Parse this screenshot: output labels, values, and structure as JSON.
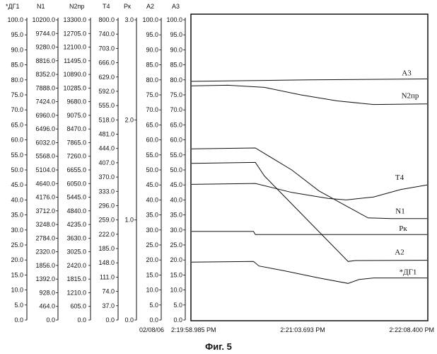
{
  "caption": "Фиг. 5",
  "chart_data": {
    "type": "line",
    "date": "02/08/06",
    "x_ticks": [
      "2:19:58.985 PM",
      "2:21:03.693 PM",
      "2:22:08.400 PM"
    ],
    "x_range_seconds": [
      0,
      129.415
    ],
    "axes": [
      {
        "name": "*ДГ1",
        "ticks": [
          "100.0",
          "95.0",
          "90.0",
          "85.0",
          "80.0",
          "75.0",
          "70.0",
          "65.0",
          "60.0",
          "55.0",
          "50.0",
          "45.0",
          "40.0",
          "35.0",
          "30.0",
          "25.0",
          "20.0",
          "15.0",
          "10.0",
          "5.0",
          "0.0"
        ]
      },
      {
        "name": "N1",
        "ticks": [
          "10200.0",
          "9744.0",
          "9280.0",
          "8816.0",
          "8352.0",
          "7888.0",
          "7424.0",
          "6960.0",
          "6496.0",
          "6032.0",
          "5568.0",
          "5104.0",
          "4640.0",
          "4176.0",
          "3712.0",
          "3248.0",
          "2784.0",
          "2320.0",
          "1856.0",
          "1392.0",
          "928.0",
          "464.0",
          "0.0"
        ]
      },
      {
        "name": "N2пр",
        "ticks": [
          "13300.0",
          "12705.0",
          "12100.0",
          "11495.0",
          "10890.0",
          "10285.0",
          "9680.0",
          "9075.0",
          "8470.0",
          "7865.0",
          "7260.0",
          "6655.0",
          "6050.0",
          "5445.0",
          "4840.0",
          "4235.0",
          "3630.0",
          "3025.0",
          "2420.0",
          "1815.0",
          "1210.0",
          "605.0",
          "0.0"
        ]
      },
      {
        "name": "T4",
        "ticks": [
          "800.0",
          "740.0",
          "703.0",
          "666.0",
          "629.0",
          "592.0",
          "555.0",
          "518.0",
          "481.0",
          "444.0",
          "407.0",
          "370.0",
          "333.0",
          "296.0",
          "259.0",
          "222.0",
          "185.0",
          "148.0",
          "111.0",
          "74.0",
          "37.0",
          "0.0"
        ]
      },
      {
        "name": "Pк",
        "ticks": [
          "3.0",
          "2.0",
          "1.0",
          "0.0"
        ]
      },
      {
        "name": "A2",
        "ticks": [
          "100.0",
          "95.0",
          "90.0",
          "85.0",
          "80.0",
          "75.0",
          "70.0",
          "65.0",
          "60.0",
          "55.0",
          "50.0",
          "45.0",
          "40.0",
          "35.0",
          "30.0",
          "25.0",
          "20.0",
          "15.0",
          "10.0",
          "5.0",
          "0.0"
        ]
      },
      {
        "name": "A3",
        "ticks": [
          "100.0",
          "95.0",
          "90.0",
          "85.0",
          "80.0",
          "75.0",
          "70.0",
          "65.0",
          "60.0",
          "55.0",
          "50.0",
          "45.0",
          "40.0",
          "35.0",
          "30.0",
          "25.0",
          "20.0",
          "15.0",
          "10.0",
          "5.0",
          "0.0"
        ]
      }
    ],
    "y_range_percent": [
      0,
      100
    ],
    "series": [
      {
        "name": "A3",
        "x": [
          0,
          64.7,
          129.415
        ],
        "y": [
          79.5,
          80.0,
          80.3
        ]
      },
      {
        "name": "N2пр",
        "x": [
          0,
          20,
          40,
          60,
          80,
          100,
          129.415
        ],
        "y": [
          78.0,
          78.2,
          77.5,
          75.0,
          73.0,
          71.8,
          72.0
        ]
      },
      {
        "name": "T4",
        "x": [
          0,
          35,
          55,
          75,
          85,
          100,
          115,
          129.415
        ],
        "y": [
          45.2,
          45.5,
          42.5,
          40.5,
          40.0,
          41.0,
          43.5,
          45.0
        ]
      },
      {
        "name": "N1",
        "x": [
          0,
          35,
          55,
          70,
          85,
          97,
          110,
          129.415
        ],
        "y": [
          57.0,
          57.3,
          50.0,
          43.0,
          38.0,
          34.0,
          33.8,
          33.8
        ]
      },
      {
        "name": "Pк",
        "x": [
          0,
          34,
          35,
          129.415
        ],
        "y": [
          29.5,
          29.5,
          28.5,
          28.5
        ]
      },
      {
        "name": "A2",
        "x": [
          0,
          35,
          40,
          86,
          90,
          129.415
        ],
        "y": [
          52.2,
          52.5,
          48.0,
          19.5,
          19.8,
          19.9
        ]
      },
      {
        "name": "*ДГ1",
        "x": [
          0,
          34,
          37,
          50,
          70,
          86,
          92,
          100,
          129.415
        ],
        "y": [
          19.3,
          19.5,
          18.0,
          16.5,
          14.0,
          12.2,
          13.5,
          14.0,
          14.0
        ]
      }
    ]
  }
}
